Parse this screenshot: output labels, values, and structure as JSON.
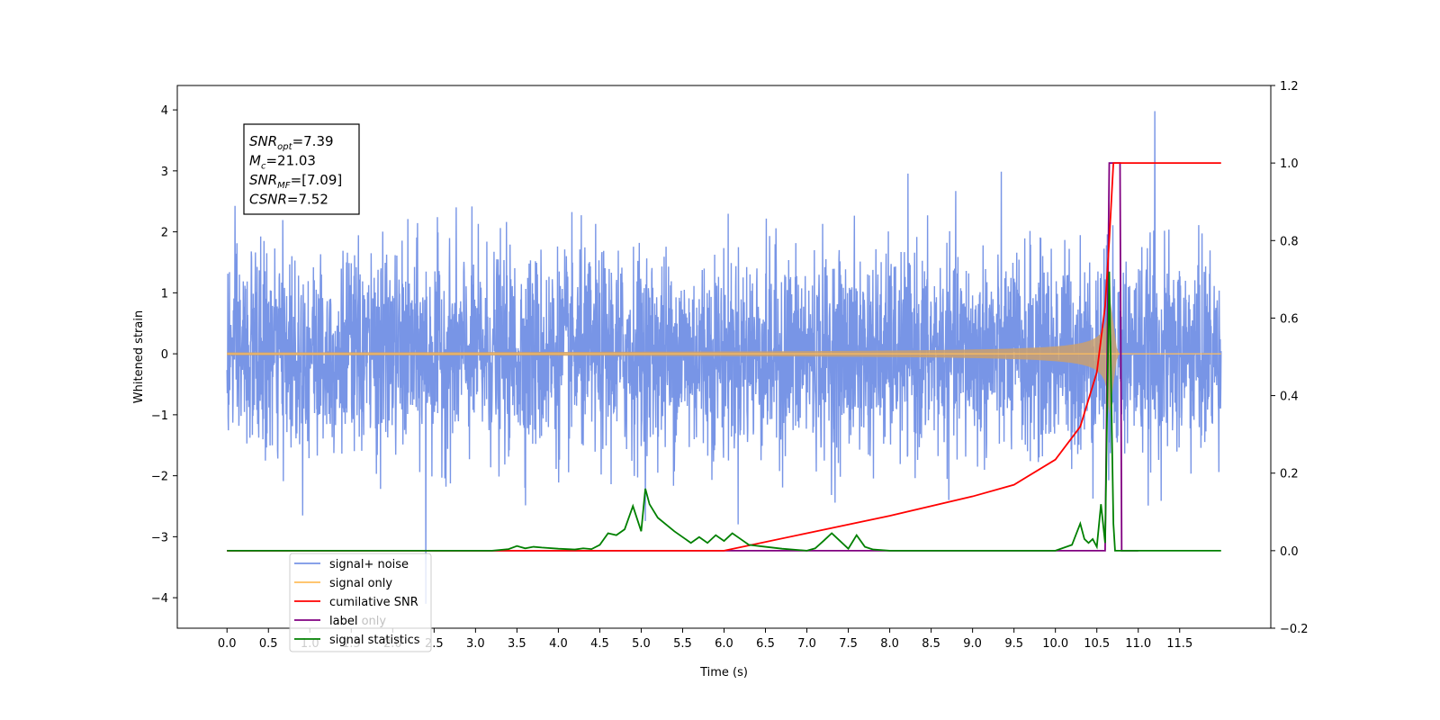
{
  "chart_data": {
    "type": "line",
    "xlabel": "Time (s)",
    "ylabel": "Whitened strain",
    "xlim": [
      -0.6,
      12.6
    ],
    "ylim_left": [
      -4.5,
      4.4
    ],
    "ylim_right": [
      -0.2,
      1.2
    ],
    "x_ticks": [
      "0.0",
      "0.5",
      "1.0",
      "1.5",
      "2.0",
      "2.5",
      "3.0",
      "3.5",
      "4.0",
      "4.5",
      "5.0",
      "5.5",
      "6.0",
      "6.5",
      "7.0",
      "7.5",
      "8.0",
      "8.5",
      "9.0",
      "9.5",
      "10.0",
      "10.5",
      "11.0",
      "11.5"
    ],
    "y_ticks_left": [
      "4",
      "3",
      "2",
      "1",
      "0",
      "−1",
      "−2",
      "−3",
      "−4"
    ],
    "y_ticks_right": [
      "1.2",
      "1.0",
      "0.8",
      "0.6",
      "0.4",
      "0.2",
      "0.0",
      "−0.2"
    ],
    "annotation": {
      "lines": [
        {
          "base": "SNR",
          "sub": "opt",
          "rest": "=7.39"
        },
        {
          "base": "M",
          "sub": "c",
          "rest": "=21.03"
        },
        {
          "base": "SNR",
          "sub": "MF",
          "rest": "=[7.09]"
        },
        {
          "base": "CSNR",
          "sub": "",
          "rest": "=7.52"
        }
      ]
    },
    "legend": {
      "placement": "lower-left",
      "entries": [
        {
          "label": "signal+ noise",
          "color": "#7895e6"
        },
        {
          "label": "signal only",
          "color": "#ffbe5c"
        },
        {
          "label": "cumilative SNR",
          "color": "#ff0000"
        },
        {
          "label": "label",
          "color": "#800080"
        },
        {
          "label": "signal statistics",
          "color": "#008000"
        }
      ],
      "hidden_label": "label only"
    },
    "series": [
      {
        "name": "signal+ noise",
        "axis": "left",
        "color": "#7895e6",
        "x_range": [
          0.0,
          12.0
        ],
        "description": "whitened noise plus signal, approximately |y| <= 2.5 with spikes to 4.0 and -4.1",
        "peak_max": {
          "x": 11.2,
          "y": 3.98
        },
        "peak_min": {
          "x": 2.4,
          "y": -4.1
        }
      },
      {
        "name": "signal only",
        "axis": "left",
        "color": "#ffbe5c",
        "chirp": {
          "t_merge": 10.65,
          "t_end": 10.75,
          "peak_amplitude": 1.0
        },
        "x_range": [
          0.0,
          12.0
        ]
      },
      {
        "name": "cumilative SNR",
        "axis": "right",
        "color": "#ff0000",
        "x": [
          0.0,
          6.0,
          7.0,
          8.0,
          9.0,
          9.5,
          10.0,
          10.3,
          10.5,
          10.6,
          10.65,
          10.7,
          12.0
        ],
        "y": [
          0.0,
          0.0,
          0.045,
          0.09,
          0.14,
          0.17,
          0.235,
          0.32,
          0.46,
          0.63,
          0.8,
          1.0,
          1.0
        ]
      },
      {
        "name": "label",
        "axis": "right",
        "color": "#800080",
        "x": [
          0.0,
          10.6,
          10.65,
          10.78,
          10.8,
          11.0
        ],
        "y": [
          0.0,
          0.0,
          1.0,
          1.0,
          0.0,
          0.0
        ]
      },
      {
        "name": "signal statistics",
        "axis": "right",
        "color": "#008000",
        "x": [
          0.0,
          3.2,
          3.4,
          3.5,
          3.6,
          3.7,
          3.8,
          4.0,
          4.2,
          4.3,
          4.4,
          4.5,
          4.6,
          4.7,
          4.8,
          4.9,
          5.0,
          5.05,
          5.1,
          5.2,
          5.4,
          5.6,
          5.7,
          5.8,
          5.9,
          6.0,
          6.1,
          6.2,
          6.3,
          6.5,
          6.7,
          7.0,
          7.1,
          7.2,
          7.3,
          7.4,
          7.5,
          7.6,
          7.7,
          7.8,
          8.0,
          8.2,
          9.0,
          10.0,
          10.2,
          10.3,
          10.35,
          10.4,
          10.45,
          10.5,
          10.55,
          10.6,
          10.65,
          10.7,
          10.72,
          10.8,
          12.0
        ],
        "y": [
          0.0,
          0.0,
          0.004,
          0.012,
          0.006,
          0.01,
          0.008,
          0.005,
          0.003,
          0.006,
          0.004,
          0.015,
          0.045,
          0.04,
          0.055,
          0.115,
          0.05,
          0.16,
          0.12,
          0.085,
          0.05,
          0.02,
          0.035,
          0.02,
          0.04,
          0.025,
          0.045,
          0.03,
          0.015,
          0.01,
          0.005,
          0.0,
          0.006,
          0.025,
          0.045,
          0.025,
          0.005,
          0.04,
          0.01,
          0.003,
          0.0,
          0.0,
          0.0,
          0.0,
          0.015,
          0.07,
          0.03,
          0.02,
          0.03,
          0.01,
          0.12,
          0.02,
          0.72,
          0.07,
          0.0,
          0.0,
          0.0
        ]
      }
    ]
  }
}
